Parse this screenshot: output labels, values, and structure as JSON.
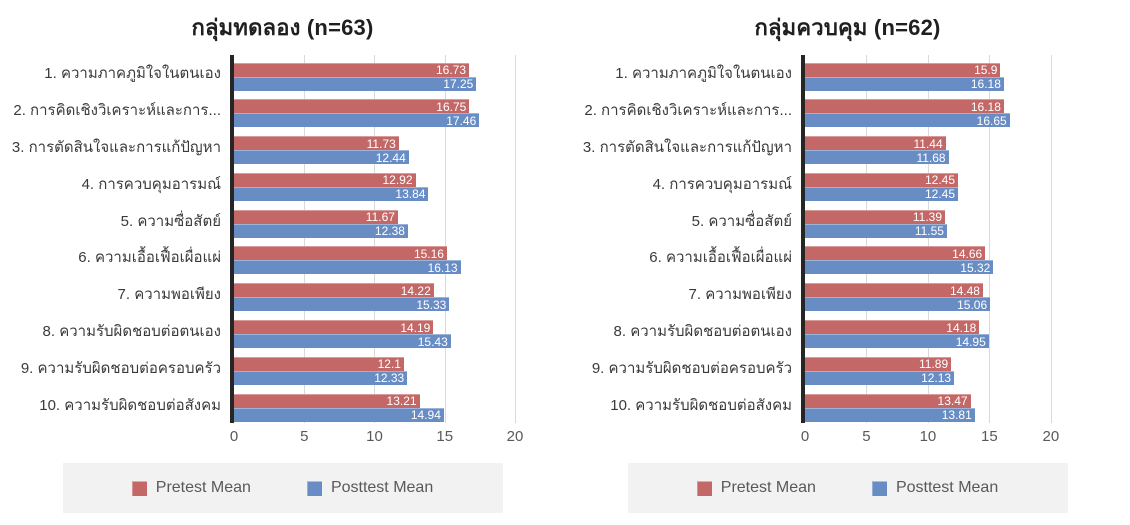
{
  "colors": {
    "pretest": "#C36866",
    "posttest": "#688DC5",
    "gridline": "#D9D9D9",
    "axis_line": "#262626",
    "legend_background": "#F2F2F2",
    "tick_text": "#595959",
    "category_text": "#3A3A3A",
    "title_text": "#1F1F1F",
    "value_text": "#FFFFFF"
  },
  "x_axis": {
    "ticks": [
      0,
      5,
      10,
      15,
      20
    ],
    "max": 20.5
  },
  "chart_data": [
    {
      "type": "bar",
      "orientation": "horizontal",
      "title": "กลุ่มทดลอง (n=63)",
      "group": "experimental",
      "n": 63,
      "categories": [
        "1. ความภาคภูมิใจในตนเอง",
        "2. การคิดเชิงวิเคราะห์และการ...",
        "3. การตัดสินใจและการแก้ปัญหา",
        "4. การควบคุมอารมณ์",
        "5. ความซื่อสัตย์",
        "6. ความเอื้อเฟื้อเผื่อแผ่",
        "7. ความพอเพียง",
        "8. ความรับผิดชอบต่อตนเอง",
        "9. ความรับผิดชอบต่อครอบครัว",
        "10. ความรับผิดชอบต่อสังคม"
      ],
      "series": [
        {
          "name": "Pretest Mean",
          "color": "#C36866",
          "values": [
            16.73,
            16.75,
            11.73,
            12.92,
            11.67,
            15.16,
            14.22,
            14.19,
            12.1,
            13.21
          ]
        },
        {
          "name": "Posttest Mean",
          "color": "#688DC5",
          "values": [
            17.25,
            17.46,
            12.44,
            13.84,
            12.38,
            16.13,
            15.33,
            15.43,
            12.33,
            14.94
          ]
        }
      ],
      "xlabel": "",
      "ylabel": "",
      "xticks": [
        0,
        5,
        10,
        15,
        20
      ],
      "xlim": [
        0,
        20.5
      ],
      "grid": "vertical-only",
      "legend_position": "bottom",
      "value_labels": "inside-end"
    },
    {
      "type": "bar",
      "orientation": "horizontal",
      "title": "กลุ่มควบคุม (n=62)",
      "group": "control",
      "n": 62,
      "categories": [
        "1. ความภาคภูมิใจในตนเอง",
        "2. การคิดเชิงวิเคราะห์และการ...",
        "3. การตัดสินใจและการแก้ปัญหา",
        "4. การควบคุมอารมณ์",
        "5. ความซื่อสัตย์",
        "6. ความเอื้อเฟื้อเผื่อแผ่",
        "7. ความพอเพียง",
        "8. ความรับผิดชอบต่อตนเอง",
        "9. ความรับผิดชอบต่อครอบครัว",
        "10. ความรับผิดชอบต่อสังคม"
      ],
      "series": [
        {
          "name": "Pretest Mean",
          "color": "#C36866",
          "values": [
            15.9,
            16.18,
            11.44,
            12.45,
            11.39,
            14.66,
            14.48,
            14.18,
            11.89,
            13.47
          ]
        },
        {
          "name": "Posttest Mean",
          "color": "#688DC5",
          "values": [
            16.18,
            16.65,
            11.68,
            12.45,
            11.55,
            15.32,
            15.06,
            14.95,
            12.13,
            13.81
          ]
        }
      ],
      "xlabel": "",
      "ylabel": "",
      "xticks": [
        0,
        5,
        10,
        15,
        20
      ],
      "xlim": [
        0,
        20.5
      ],
      "grid": "vertical-only",
      "legend_position": "bottom",
      "value_labels": "inside-end"
    }
  ]
}
